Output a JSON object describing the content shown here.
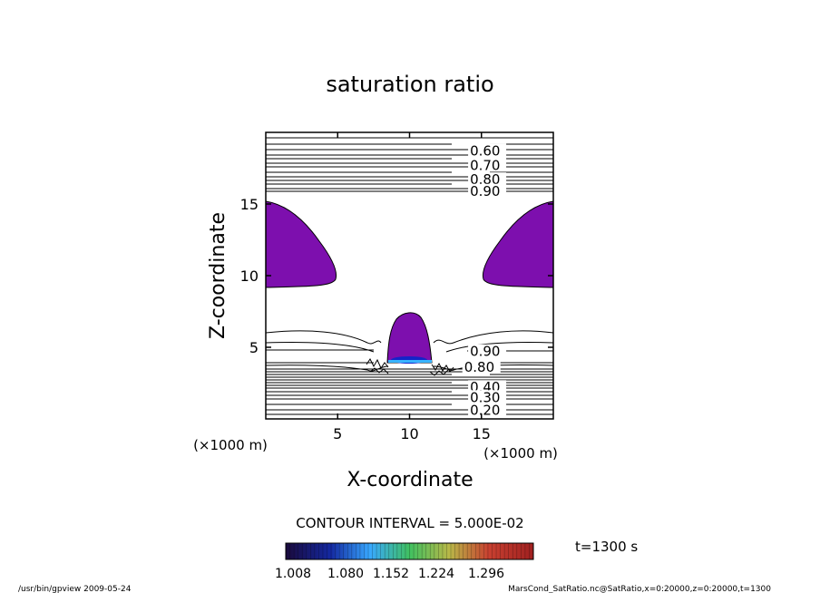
{
  "chart_data": {
    "type": "heatmap",
    "title": "saturation ratio",
    "xlabel": "X-coordinate",
    "ylabel": "Z-coordinate",
    "x_units": "(×1000 m)",
    "y_units": "(×1000 m)",
    "xlim": [
      0,
      20
    ],
    "ylim": [
      0,
      20
    ],
    "x_ticks": [
      {
        "value": 5,
        "label": "5"
      },
      {
        "value": 10,
        "label": "10"
      },
      {
        "value": 15,
        "label": "15"
      }
    ],
    "y_ticks": [
      {
        "value": 5,
        "label": "5"
      },
      {
        "value": 10,
        "label": "10"
      },
      {
        "value": 15,
        "label": "15"
      }
    ],
    "contour_interval_text": "CONTOUR INTERVAL = 5.000E-02",
    "contour_labels": [
      {
        "label": "0.60",
        "x": 14.2,
        "z": 18.7
      },
      {
        "label": "0.70",
        "x": 14.2,
        "z": 17.7
      },
      {
        "label": "0.80",
        "x": 14.2,
        "z": 16.7
      },
      {
        "label": "0.90",
        "x": 14.2,
        "z": 15.9
      },
      {
        "label": "0.90",
        "x": 14.2,
        "z": 4.7
      },
      {
        "label": "0.80",
        "x": 13.8,
        "z": 3.6
      },
      {
        "label": "0.40",
        "x": 14.2,
        "z": 2.2
      },
      {
        "label": "0.30",
        "x": 14.2,
        "z": 1.5
      },
      {
        "label": "0.20",
        "x": 14.2,
        "z": 0.6
      }
    ],
    "colorbar": {
      "ticks": [
        "1.008",
        "1.080",
        "1.152",
        "1.224",
        "1.296"
      ],
      "min": 1.008,
      "max": 1.296
    },
    "colors": {
      "fill_region": "#7d0fae",
      "core_light": "#38b4ff",
      "core_dark": "#1424c8"
    }
  },
  "time_label": "t=1300 s",
  "footer": {
    "left": "/usr/bin/gpview  2009-05-24",
    "right": "MarsCond_SatRatio.nc@SatRatio,x=0:20000,z=0:20000,t=1300"
  }
}
